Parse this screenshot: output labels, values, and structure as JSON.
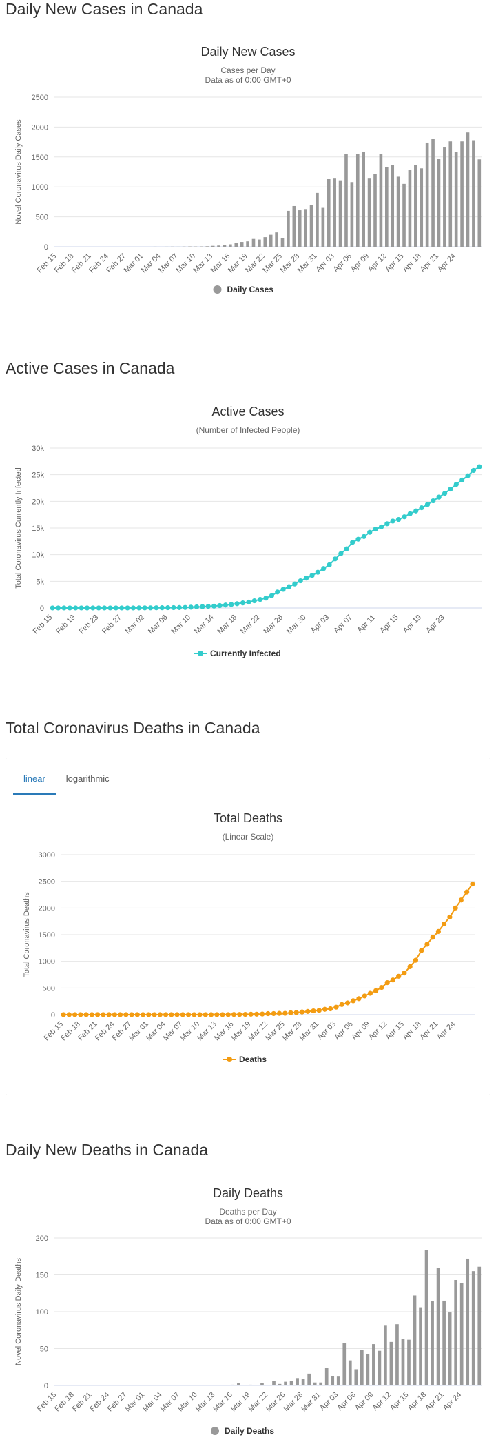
{
  "sections": {
    "daily_cases": "Daily New Cases in Canada",
    "active_cases": "Active Cases in Canada",
    "total_deaths": "Total Coronavirus Deaths in Canada",
    "daily_deaths": "Daily New Deaths in Canada"
  },
  "tabs": {
    "linear": "linear",
    "logarithmic": "logarithmic",
    "active": "linear"
  },
  "colors": {
    "bar": "#999999",
    "active": "#33cccc",
    "deaths": "#f39c12",
    "grid": "#e6e6e6"
  },
  "chart_data": [
    {
      "type": "bar",
      "title": "Daily New Cases",
      "subtitle": [
        "Cases per Day",
        "Data as of 0:00 GMT+0"
      ],
      "ylabel": "Novel Coronavirus Daily Cases",
      "ylim": [
        0,
        2500
      ],
      "yticks": [
        "0",
        "500",
        "1000",
        "1500",
        "2000",
        "2500"
      ],
      "ytick_values": [
        0,
        500,
        1000,
        1500,
        2000,
        2500
      ],
      "x_tick_labels": [
        "Feb 15",
        "Feb 18",
        "Feb 21",
        "Feb 24",
        "Feb 27",
        "Mar 01",
        "Mar 04",
        "Mar 07",
        "Mar 10",
        "Mar 13",
        "Mar 16",
        "Mar 19",
        "Mar 22",
        "Mar 25",
        "Mar 28",
        "Mar 31",
        "Apr 03",
        "Apr 06",
        "Apr 09",
        "Apr 12",
        "Apr 15",
        "Apr 18",
        "Apr 21",
        "Apr 24"
      ],
      "legend": "Daily Cases",
      "start_date": "Feb 15",
      "values": [
        0,
        0,
        0,
        0,
        0,
        0,
        0,
        0,
        0,
        0,
        0,
        0,
        0,
        0,
        0,
        0,
        0,
        1,
        0,
        1,
        2,
        1,
        3,
        5,
        4,
        5,
        8,
        15,
        20,
        30,
        40,
        60,
        80,
        90,
        130,
        120,
        160,
        200,
        240,
        140,
        600,
        680,
        610,
        630,
        700,
        900,
        650,
        1130,
        1150,
        1110,
        1550,
        1080,
        1550,
        1590,
        1150,
        1220,
        1550,
        1330,
        1370,
        1170,
        1050,
        1290,
        1360,
        1310,
        1740,
        1800,
        1470,
        1670,
        1760,
        1580,
        1760,
        1910,
        1780,
        1460
      ],
      "grid": true,
      "legend_position": "bottom"
    },
    {
      "type": "line",
      "title": "Active Cases",
      "subtitle": [
        "(Number of Infected People)"
      ],
      "ylabel": "Total Coronavirus Currently Infected",
      "ylim": [
        0,
        30000
      ],
      "yticks": [
        "0",
        "5k",
        "10k",
        "15k",
        "20k",
        "25k",
        "30k"
      ],
      "ytick_values": [
        0,
        5000,
        10000,
        15000,
        20000,
        25000,
        30000
      ],
      "x_tick_labels": [
        "Feb 15",
        "Feb 19",
        "Feb 23",
        "Feb 27",
        "Mar 02",
        "Mar 06",
        "Mar 10",
        "Mar 14",
        "Mar 18",
        "Mar 22",
        "Mar 26",
        "Mar 30",
        "Apr 03",
        "Apr 07",
        "Apr 11",
        "Apr 15",
        "Apr 19",
        "Apr 23"
      ],
      "legend": "Currently Infected",
      "start_date": "Feb 15",
      "values": [
        5,
        5,
        5,
        5,
        5,
        5,
        5,
        5,
        5,
        5,
        5,
        6,
        7,
        8,
        10,
        15,
        20,
        25,
        35,
        45,
        55,
        65,
        80,
        100,
        150,
        200,
        250,
        300,
        350,
        450,
        550,
        650,
        800,
        950,
        1100,
        1350,
        1600,
        1850,
        2300,
        3000,
        3500,
        4000,
        4500,
        5100,
        5600,
        6100,
        6700,
        7400,
        8100,
        9200,
        10200,
        11100,
        12300,
        12900,
        13400,
        14200,
        14800,
        15200,
        15800,
        16300,
        16600,
        17100,
        17700,
        18200,
        18800,
        19400,
        20100,
        20800,
        21500,
        22300,
        23200,
        24000,
        24800,
        25800,
        26500
      ],
      "grid": true,
      "legend_position": "bottom"
    },
    {
      "type": "line",
      "title": "Total Deaths",
      "subtitle": [
        "(Linear Scale)"
      ],
      "ylabel": "Total Coronavirus Deaths",
      "ylim": [
        0,
        3000
      ],
      "yticks": [
        "0",
        "500",
        "1000",
        "1500",
        "2000",
        "2500",
        "3000"
      ],
      "ytick_values": [
        0,
        500,
        1000,
        1500,
        2000,
        2500,
        3000
      ],
      "x_tick_labels": [
        "Feb 15",
        "Feb 18",
        "Feb 21",
        "Feb 24",
        "Feb 27",
        "Mar 01",
        "Mar 04",
        "Mar 07",
        "Mar 10",
        "Mar 13",
        "Mar 16",
        "Mar 19",
        "Mar 22",
        "Mar 25",
        "Mar 28",
        "Mar 31",
        "Apr 03",
        "Apr 06",
        "Apr 09",
        "Apr 12",
        "Apr 15",
        "Apr 18",
        "Apr 21",
        "Apr 24"
      ],
      "legend": "Deaths",
      "start_date": "Feb 15",
      "values": [
        0,
        0,
        0,
        0,
        0,
        0,
        0,
        0,
        0,
        0,
        0,
        0,
        0,
        0,
        0,
        0,
        0,
        0,
        0,
        0,
        0,
        0,
        0,
        0,
        0,
        0,
        0,
        1,
        1,
        1,
        4,
        4,
        5,
        8,
        9,
        12,
        19,
        20,
        24,
        25,
        35,
        40,
        50,
        60,
        70,
        80,
        100,
        110,
        140,
        190,
        220,
        260,
        300,
        350,
        400,
        450,
        510,
        600,
        650,
        720,
        780,
        900,
        1020,
        1200,
        1320,
        1450,
        1560,
        1700,
        1830,
        2000,
        2150,
        2300,
        2450
      ],
      "grid": true,
      "legend_position": "bottom"
    },
    {
      "type": "bar",
      "title": "Daily Deaths",
      "subtitle": [
        "Deaths per Day",
        "Data as of 0:00 GMT+0"
      ],
      "ylabel": "Novel Coronavirus Daily Deaths",
      "ylim": [
        0,
        200
      ],
      "yticks": [
        "0",
        "50",
        "100",
        "150",
        "200"
      ],
      "ytick_values": [
        0,
        50,
        100,
        150,
        200
      ],
      "x_tick_labels": [
        "Feb 15",
        "Feb 18",
        "Feb 21",
        "Feb 24",
        "Feb 27",
        "Mar 01",
        "Mar 04",
        "Mar 07",
        "Mar 10",
        "Mar 13",
        "Mar 16",
        "Mar 19",
        "Mar 22",
        "Mar 25",
        "Mar 28",
        "Mar 31",
        "Apr 03",
        "Apr 06",
        "Apr 09",
        "Apr 12",
        "Apr 15",
        "Apr 18",
        "Apr 21",
        "Apr 24"
      ],
      "legend": "Daily Deaths",
      "start_date": "Feb 15",
      "values": [
        0,
        0,
        0,
        0,
        0,
        0,
        0,
        0,
        0,
        0,
        0,
        0,
        0,
        0,
        0,
        0,
        0,
        0,
        0,
        0,
        0,
        0,
        0,
        0,
        0,
        0,
        0,
        0,
        0,
        0,
        1,
        3,
        0,
        1,
        0,
        3,
        0,
        6,
        2,
        5,
        6,
        10,
        9,
        16,
        4,
        4,
        24,
        13,
        12,
        57,
        34,
        22,
        48,
        43,
        56,
        47,
        81,
        59,
        83,
        63,
        62,
        122,
        106,
        184,
        114,
        159,
        115,
        99,
        143,
        139,
        172,
        155,
        161
      ],
      "grid": true,
      "legend_position": "bottom"
    }
  ]
}
